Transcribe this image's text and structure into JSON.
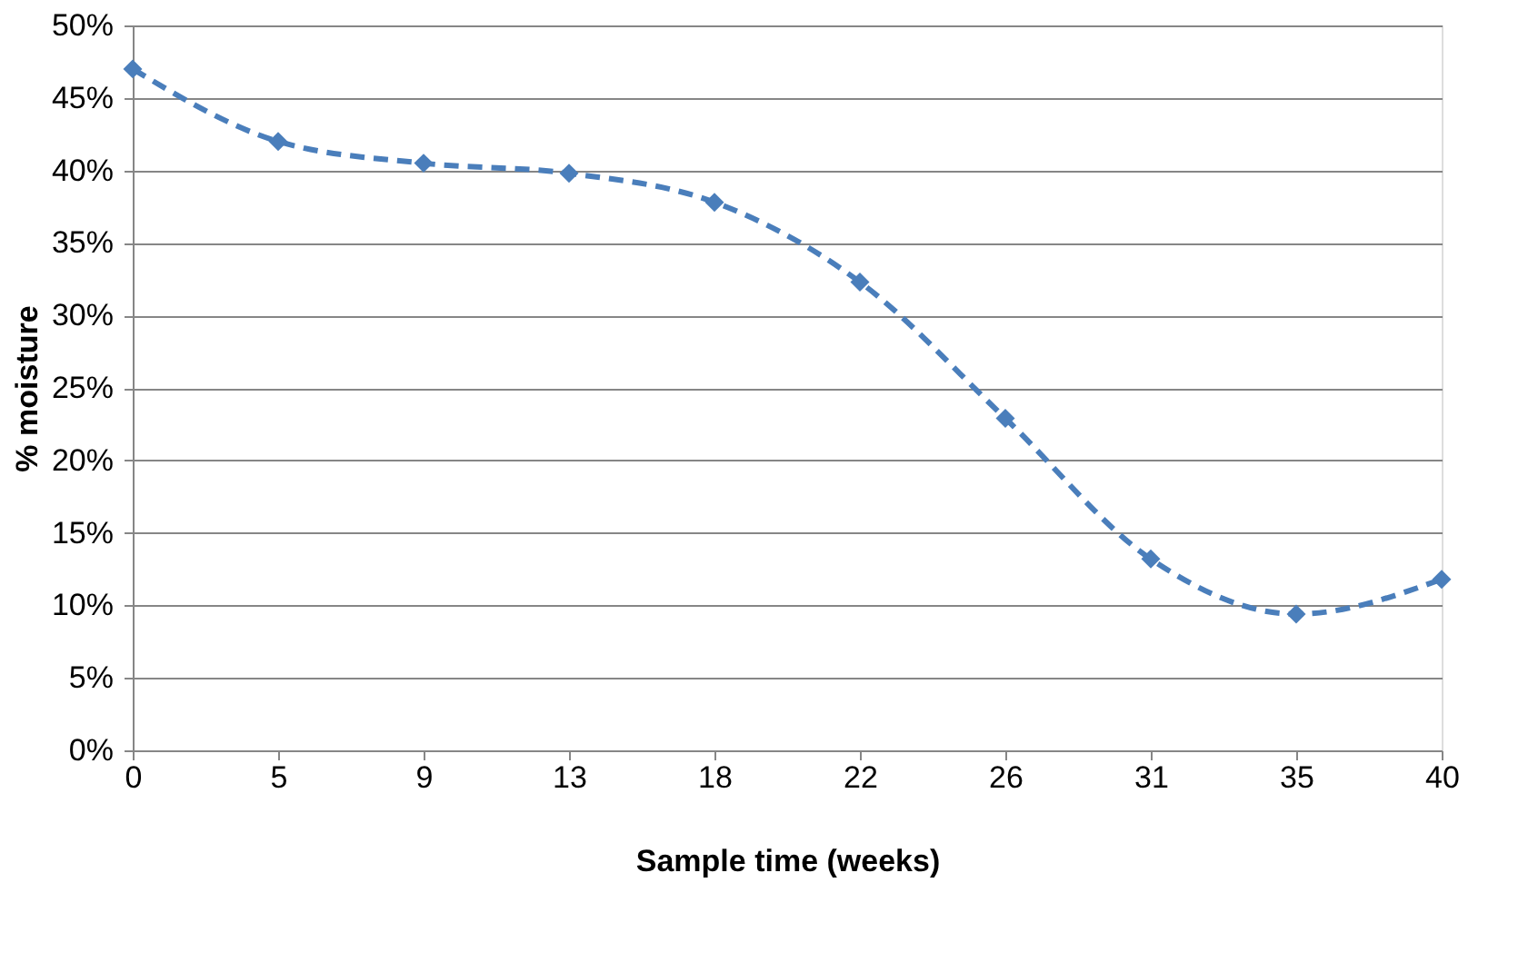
{
  "chart_data": {
    "type": "line",
    "xlabel": "Sample time (weeks)",
    "ylabel": "% moisture",
    "categories": [
      "0",
      "5",
      "9",
      "13",
      "18",
      "22",
      "26",
      "31",
      "35",
      "40"
    ],
    "series": [
      {
        "color": "#4a7ebb",
        "values": [
          47.0,
          42.0,
          40.5,
          39.8,
          37.8,
          32.3,
          22.9,
          13.2,
          9.4,
          11.8
        ]
      }
    ],
    "ylim": [
      0,
      50
    ],
    "yticks": [
      {
        "value": 0,
        "label": "0%"
      },
      {
        "value": 5,
        "label": "5%"
      },
      {
        "value": 10,
        "label": "10%"
      },
      {
        "value": 15,
        "label": "15%"
      },
      {
        "value": 20,
        "label": "20%"
      },
      {
        "value": 25,
        "label": "25%"
      },
      {
        "value": 30,
        "label": "30%"
      },
      {
        "value": 35,
        "label": "35%"
      },
      {
        "value": 40,
        "label": "40%"
      },
      {
        "value": 45,
        "label": "45%"
      },
      {
        "value": 50,
        "label": "50%"
      }
    ],
    "grid": "y",
    "marker": "diamond",
    "line_style": "dashed"
  }
}
